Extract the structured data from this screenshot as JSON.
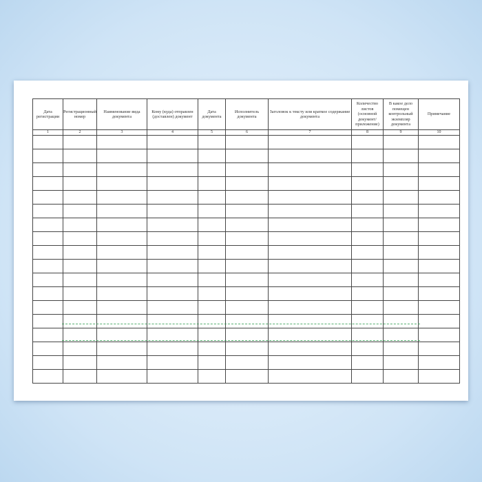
{
  "columns": [
    {
      "title": "Дата регистрации",
      "num": "1"
    },
    {
      "title": "Регистрационный номер",
      "num": "2"
    },
    {
      "title": "Наименование вида документа",
      "num": "3"
    },
    {
      "title": "Кому (куда) отправлен (доставлен) документ",
      "num": "4"
    },
    {
      "title": "Дата документа",
      "num": "5"
    },
    {
      "title": "Исполнитель документа",
      "num": "6"
    },
    {
      "title": "Заголовок к тексту или краткое содержание документа",
      "num": "7"
    },
    {
      "title": "Количество листов (основной документ/ приложение)",
      "num": "8"
    },
    {
      "title": "В какое дело помещен контрольный экземпляр документа",
      "num": "9"
    },
    {
      "title": "Примечание",
      "num": "10"
    }
  ],
  "blank_rows": 18,
  "colors": {
    "background": "#cfe4f6",
    "paper": "#ffffff",
    "grid": "#444444",
    "watermark": "#2a9a4a"
  }
}
